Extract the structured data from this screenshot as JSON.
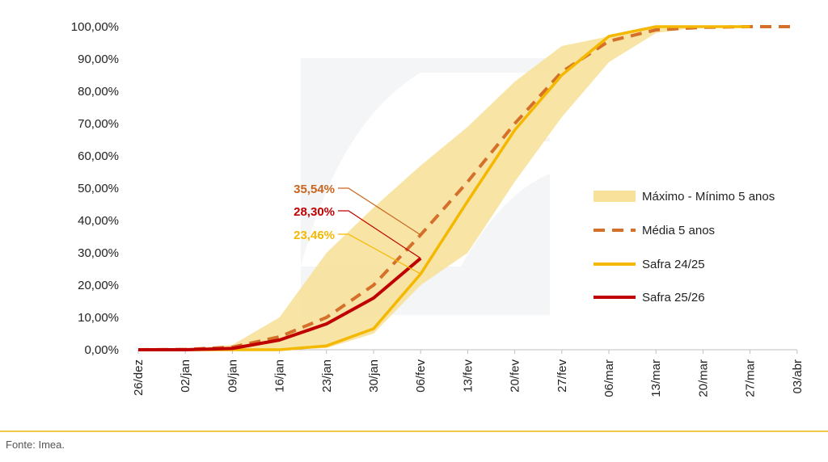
{
  "chart_data": {
    "type": "line",
    "categories": [
      "26/dez",
      "02/jan",
      "09/jan",
      "16/jan",
      "23/jan",
      "30/jan",
      "06/fev",
      "13/fev",
      "20/fev",
      "27/fev",
      "06/mar",
      "13/mar",
      "20/mar",
      "27/mar",
      "03/abr"
    ],
    "ylim": [
      0,
      100
    ],
    "y_ticks": [
      "0,00%",
      "10,00%",
      "20,00%",
      "30,00%",
      "40,00%",
      "50,00%",
      "60,00%",
      "70,00%",
      "80,00%",
      "90,00%",
      "100,00%"
    ],
    "series": [
      {
        "name": "Máximo - Mínimo 5 anos",
        "kind": "band",
        "color": "#f7e19b",
        "upper": [
          0,
          0.2,
          1.5,
          10,
          30,
          44,
          57,
          69,
          83,
          94,
          97,
          99.8,
          100,
          100,
          null
        ],
        "lower": [
          0,
          0,
          0,
          0,
          0.5,
          5,
          20,
          30,
          52,
          72,
          89,
          98,
          100,
          100,
          null
        ]
      },
      {
        "name": "Média 5 anos",
        "kind": "dashed",
        "color": "#d4702a",
        "values": [
          0,
          0.1,
          0.8,
          4,
          10,
          20,
          35.54,
          52,
          70,
          86,
          95.5,
          99,
          99.8,
          100,
          100
        ]
      },
      {
        "name": "Safra 24/25",
        "kind": "line",
        "color": "#f5b800",
        "values": [
          0,
          0,
          0,
          0,
          1.2,
          6.5,
          23.46,
          46,
          68,
          85,
          97,
          100,
          100,
          100,
          null
        ]
      },
      {
        "name": "Safra 25/26",
        "kind": "line",
        "color": "#c00000",
        "values": [
          0,
          0,
          0.4,
          3,
          8,
          16,
          28.3,
          null,
          null,
          null,
          null,
          null,
          null,
          null,
          null
        ]
      }
    ],
    "annotations": [
      {
        "text": "35,54%",
        "series": "Média 5 anos",
        "index": 6,
        "value": 35.54,
        "color": "#c8641e"
      },
      {
        "text": "28,30%",
        "series": "Safra 25/26",
        "index": 6,
        "value": 28.3,
        "color": "#c00000"
      },
      {
        "text": "23,46%",
        "series": "Safra 24/25",
        "index": 6,
        "value": 23.46,
        "color": "#f5b800"
      }
    ],
    "legend": "right"
  },
  "watermark_text": "IMEA",
  "footer": {
    "source": "Fonte: Imea."
  }
}
